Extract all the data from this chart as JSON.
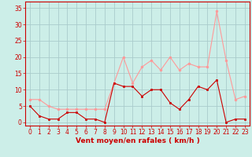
{
  "x": [
    0,
    1,
    2,
    3,
    4,
    5,
    6,
    7,
    8,
    9,
    10,
    11,
    12,
    13,
    14,
    15,
    16,
    17,
    18,
    19,
    20,
    21,
    22,
    23
  ],
  "vent_moyen": [
    5,
    2,
    1,
    1,
    3,
    3,
    1,
    1,
    0,
    12,
    11,
    11,
    8,
    10,
    10,
    6,
    4,
    7,
    11,
    10,
    13,
    0,
    1,
    1
  ],
  "rafales": [
    7,
    7,
    5,
    4,
    4,
    4,
    4,
    4,
    4,
    12,
    20,
    12,
    17,
    19,
    16,
    20,
    16,
    18,
    17,
    17,
    34,
    19,
    7,
    8
  ],
  "bg_color": "#cceee8",
  "grid_color": "#aacccc",
  "line_moyen_color": "#cc0000",
  "line_rafales_color": "#ff9999",
  "xlabel": "Vent moyen/en rafales ( km/h )",
  "ylim": [
    -1,
    37
  ],
  "xlim": [
    -0.5,
    23.5
  ],
  "yticks": [
    0,
    5,
    10,
    15,
    20,
    25,
    30,
    35
  ],
  "xticks": [
    0,
    1,
    2,
    3,
    4,
    5,
    6,
    7,
    8,
    9,
    10,
    11,
    12,
    13,
    14,
    15,
    16,
    17,
    18,
    19,
    20,
    21,
    22,
    23
  ],
  "axis_color": "#cc0000",
  "tick_labelsize": 5.5,
  "xlabel_fontsize": 6.5
}
